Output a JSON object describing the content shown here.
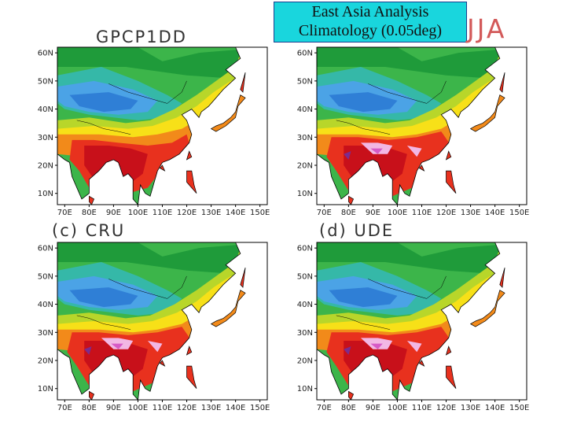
{
  "figure": {
    "title_line1": "East Asia Analysis",
    "title_line2": "Climatology (0.05deg)",
    "season": "JJA"
  },
  "colors": {
    "deep_purple": "#7b2c8f",
    "magenta": "#d65ac6",
    "pink": "#f2b7e4",
    "dark_red": "#c8101a",
    "red": "#e8311e",
    "orange": "#f28a1a",
    "yellow": "#f7e018",
    "yellow_green": "#b8d62a",
    "green": "#3cb54a",
    "dark_green": "#1f9b3a",
    "teal": "#35b8a8",
    "light_blue": "#4ba3e6",
    "blue": "#2f7fd6",
    "land_outline": "#000000",
    "ocean": "#ffffff"
  },
  "axes": {
    "lon_labels": [
      "70E",
      "80E",
      "90E",
      "100E",
      "110E",
      "120E",
      "130E",
      "140E",
      "150E"
    ],
    "lat_labels": [
      "60N",
      "50N",
      "40N",
      "30N",
      "20N",
      "10N"
    ]
  },
  "panels": [
    {
      "title": "GPCP1DD"
    },
    {
      "title": ""
    },
    {
      "title": "(c) CRU"
    },
    {
      "title": "(d) UDE"
    }
  ]
}
